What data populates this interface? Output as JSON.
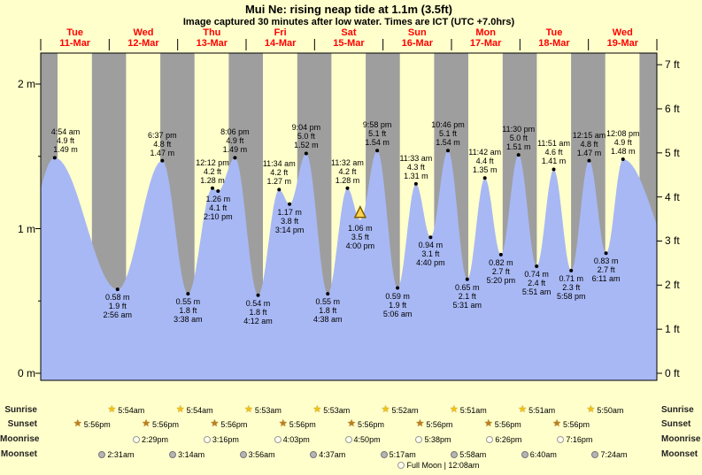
{
  "header": {
    "title": "Mui Ne: rising  neap tide at 1.1m (3.5ft)",
    "subtitle": "Image captured 30 minutes after low water. Times are ICT (UTC +7.0hrs)"
  },
  "colors": {
    "background": "#ffffcc",
    "night_band": "#9e9e9e",
    "tide_area": "#a8b8f4",
    "day_label": "#ff0000",
    "marker_fill": "#ffd24d",
    "marker_outline": "#7a5c00"
  },
  "chart_data": {
    "type": "area",
    "x_axis": {
      "days": [
        {
          "dow": "Tue",
          "date": "11-Mar"
        },
        {
          "dow": "Wed",
          "date": "12-Mar"
        },
        {
          "dow": "Thu",
          "date": "13-Mar"
        },
        {
          "dow": "Fri",
          "date": "14-Mar"
        },
        {
          "dow": "Sat",
          "date": "15-Mar"
        },
        {
          "dow": "Sun",
          "date": "16-Mar"
        },
        {
          "dow": "Mon",
          "date": "17-Mar"
        },
        {
          "dow": "Tue",
          "date": "18-Mar"
        },
        {
          "dow": "Wed",
          "date": "19-Mar"
        }
      ]
    },
    "y_axis_left": {
      "unit": "m",
      "labels": [
        "2 m",
        "1 m",
        "0 m"
      ],
      "values": [
        2,
        1,
        0
      ]
    },
    "y_axis_right": {
      "unit": "ft",
      "labels": [
        "7 ft",
        "6 ft",
        "5 ft",
        "4 ft",
        "3 ft",
        "2 ft",
        "1 ft",
        "0 ft"
      ],
      "values": [
        7,
        6,
        5,
        4,
        3,
        2,
        1,
        0
      ]
    },
    "ylim": [
      0,
      2.2
    ],
    "tide_events": [
      {
        "day": 0,
        "time": "4:54 am",
        "m": 1.49,
        "ft": 4.9,
        "kind": "high"
      },
      {
        "day": 1,
        "time": "2:56 am",
        "m": 0.58,
        "ft": 1.9,
        "kind": "low"
      },
      {
        "day": 1,
        "time": "6:37 pm",
        "m": 1.47,
        "ft": 4.8,
        "kind": "high"
      },
      {
        "day": 2,
        "time": "3:38 am",
        "m": 0.55,
        "ft": 1.8,
        "kind": "low"
      },
      {
        "day": 2,
        "time": "12:12 pm",
        "m": 1.28,
        "ft": 4.2,
        "kind": "high"
      },
      {
        "day": 2,
        "time": "2:10 pm",
        "m": 1.26,
        "ft": 4.1,
        "kind": "low"
      },
      {
        "day": 2,
        "time": "8:06 pm",
        "m": 1.49,
        "ft": 4.9,
        "kind": "high"
      },
      {
        "day": 3,
        "time": "4:12 am",
        "m": 0.54,
        "ft": 1.8,
        "kind": "low"
      },
      {
        "day": 3,
        "time": "11:34 am",
        "m": 1.27,
        "ft": 4.2,
        "kind": "high"
      },
      {
        "day": 3,
        "time": "3:14 pm",
        "m": 1.17,
        "ft": 3.8,
        "kind": "low"
      },
      {
        "day": 3,
        "time": "9:04 pm",
        "m": 1.52,
        "ft": 5.0,
        "kind": "high"
      },
      {
        "day": 4,
        "time": "4:38 am",
        "m": 0.55,
        "ft": 1.8,
        "kind": "low"
      },
      {
        "day": 4,
        "time": "11:32 am",
        "m": 1.28,
        "ft": 4.2,
        "kind": "high"
      },
      {
        "day": 4,
        "time": "4:00 pm",
        "m": 1.06,
        "ft": 3.5,
        "kind": "current"
      },
      {
        "day": 4,
        "time": "9:58 pm",
        "m": 1.54,
        "ft": 5.1,
        "kind": "high"
      },
      {
        "day": 5,
        "time": "5:06 am",
        "m": 0.59,
        "ft": 1.9,
        "kind": "low"
      },
      {
        "day": 5,
        "time": "11:33 am",
        "m": 1.31,
        "ft": 4.3,
        "kind": "high"
      },
      {
        "day": 5,
        "time": "4:40 pm",
        "m": 0.94,
        "ft": 3.1,
        "kind": "low"
      },
      {
        "day": 5,
        "time": "10:46 pm",
        "m": 1.54,
        "ft": 5.1,
        "kind": "high"
      },
      {
        "day": 6,
        "time": "5:31 am",
        "m": 0.65,
        "ft": 2.1,
        "kind": "low"
      },
      {
        "day": 6,
        "time": "11:42 am",
        "m": 1.35,
        "ft": 4.4,
        "kind": "high"
      },
      {
        "day": 6,
        "time": "5:20 pm",
        "m": 0.82,
        "ft": 2.7,
        "kind": "low"
      },
      {
        "day": 6,
        "time": "11:30 pm",
        "m": 1.51,
        "ft": 5.0,
        "kind": "high"
      },
      {
        "day": 7,
        "time": "5:51 am",
        "m": 0.74,
        "ft": 2.4,
        "kind": "low"
      },
      {
        "day": 7,
        "time": "11:51 am",
        "m": 1.41,
        "ft": 4.6,
        "kind": "high"
      },
      {
        "day": 7,
        "time": "5:58 pm",
        "m": 0.71,
        "ft": 2.3,
        "kind": "low"
      },
      {
        "day": 8,
        "time": "12:15 am",
        "m": 1.47,
        "ft": 4.8,
        "kind": "high"
      },
      {
        "day": 8,
        "time": "6:11 am",
        "m": 0.83,
        "ft": 2.7,
        "kind": "low"
      },
      {
        "day": 8,
        "time": "12:08 pm",
        "m": 1.48,
        "ft": 4.9,
        "kind": "high"
      }
    ]
  },
  "astro": {
    "row_labels": [
      "Sunrise",
      "Sunset",
      "Moonrise",
      "Moonset"
    ],
    "sunrise": [
      {
        "day": 1,
        "time": "5:54am"
      },
      {
        "day": 2,
        "time": "5:54am"
      },
      {
        "day": 3,
        "time": "5:53am"
      },
      {
        "day": 4,
        "time": "5:53am"
      },
      {
        "day": 5,
        "time": "5:52am"
      },
      {
        "day": 6,
        "time": "5:51am"
      },
      {
        "day": 7,
        "time": "5:51am"
      },
      {
        "day": 8,
        "time": "5:50am"
      }
    ],
    "sunset": [
      {
        "day": 0,
        "time": "5:56pm"
      },
      {
        "day": 1,
        "time": "5:56pm"
      },
      {
        "day": 2,
        "time": "5:56pm"
      },
      {
        "day": 3,
        "time": "5:56pm"
      },
      {
        "day": 4,
        "time": "5:56pm"
      },
      {
        "day": 5,
        "time": "5:56pm"
      },
      {
        "day": 6,
        "time": "5:56pm"
      },
      {
        "day": 7,
        "time": "5:56pm"
      }
    ],
    "moonrise": [
      {
        "day": 1,
        "time": "2:29pm"
      },
      {
        "day": 2,
        "time": "3:16pm"
      },
      {
        "day": 3,
        "time": "4:03pm"
      },
      {
        "day": 4,
        "time": "4:50pm"
      },
      {
        "day": 5,
        "time": "5:38pm"
      },
      {
        "day": 6,
        "time": "6:26pm"
      },
      {
        "day": 7,
        "time": "7:16pm"
      }
    ],
    "moonset": [
      {
        "day": 1,
        "time": "2:31am"
      },
      {
        "day": 2,
        "time": "3:14am"
      },
      {
        "day": 3,
        "time": "3:56am"
      },
      {
        "day": 4,
        "time": "4:37am"
      },
      {
        "day": 5,
        "time": "5:17am"
      },
      {
        "day": 6,
        "time": "5:58am"
      },
      {
        "day": 7,
        "time": "6:40am"
      },
      {
        "day": 8,
        "time": "7:24am"
      }
    ],
    "full_moon": "Full Moon | 12:08am"
  }
}
